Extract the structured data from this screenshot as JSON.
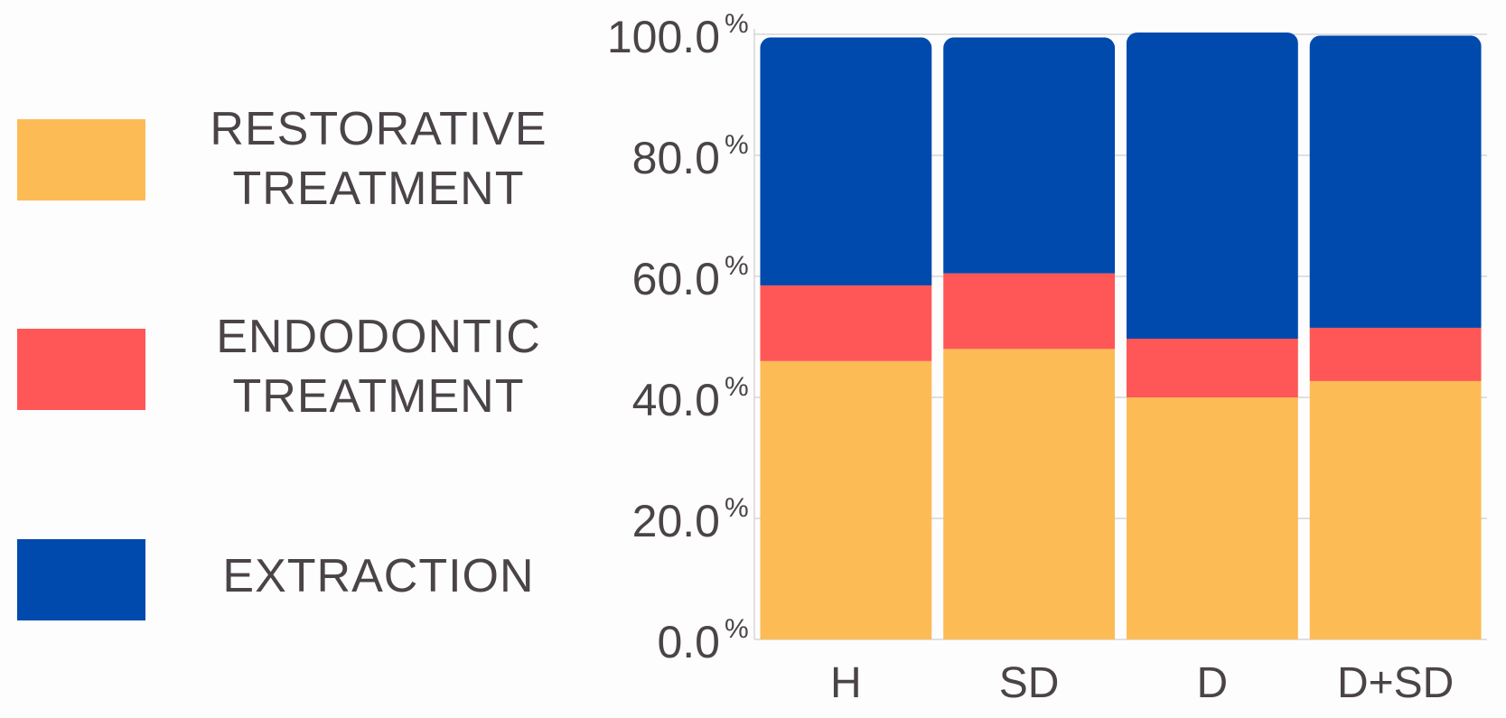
{
  "legend": {
    "items": [
      {
        "line1": "RESTORATIVE",
        "line2": "TREATMENT",
        "color": "#fdbb56"
      },
      {
        "line1": "ENDODONTIC",
        "line2": "TREATMENT",
        "color": "#ff5757"
      },
      {
        "line1": "EXTRACTION",
        "line2": "",
        "color": "#004aad"
      }
    ]
  },
  "chart_data": {
    "type": "bar",
    "stacked": true,
    "categories": [
      "H",
      "SD",
      "D",
      "D+SD"
    ],
    "series": [
      {
        "name": "RESTORATIVE TREATMENT",
        "color": "#fdbb56",
        "values": [
          46.0,
          48.0,
          40.0,
          42.7
        ]
      },
      {
        "name": "ENDODONTIC TREATMENT",
        "color": "#ff5757",
        "values": [
          12.5,
          12.5,
          9.7,
          8.8
        ]
      },
      {
        "name": "EXTRACTION",
        "color": "#004aad",
        "values": [
          41.0,
          39.0,
          50.6,
          48.3
        ]
      }
    ],
    "ylim": [
      0,
      100
    ],
    "yticks": [
      {
        "value": 0,
        "label": "0.0",
        "unit": "%"
      },
      {
        "value": 20,
        "label": "20.0",
        "unit": "%"
      },
      {
        "value": 40,
        "label": "40.0",
        "unit": "%"
      },
      {
        "value": 60,
        "label": "60.0",
        "unit": "%"
      },
      {
        "value": 80,
        "label": "80.0",
        "unit": "%"
      },
      {
        "value": 100,
        "label": "100.0",
        "unit": "%"
      }
    ],
    "grid": true,
    "legend_position": "left"
  }
}
